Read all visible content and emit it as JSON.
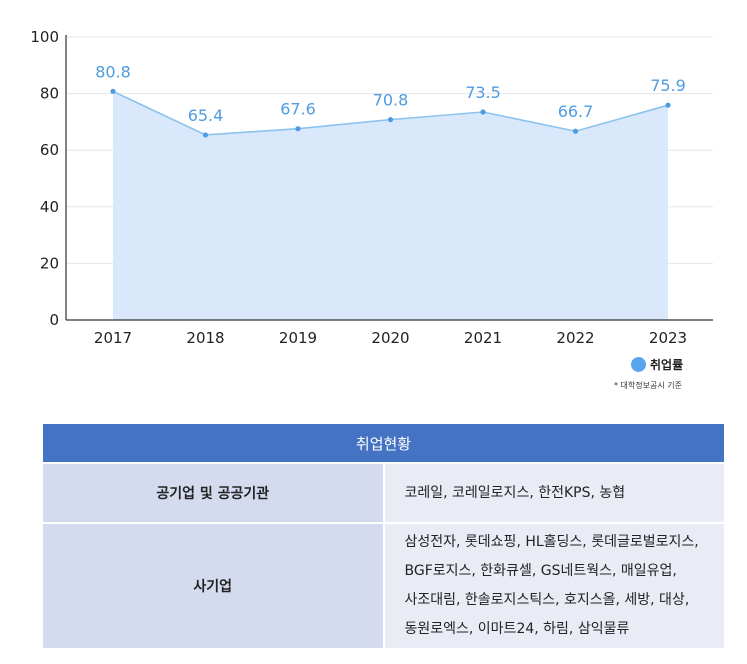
{
  "chart_data": {
    "type": "area",
    "x": [
      "2017",
      "2018",
      "2019",
      "2020",
      "2021",
      "2022",
      "2023"
    ],
    "series": [
      {
        "name": "취업률",
        "values": [
          80.8,
          65.4,
          67.6,
          70.8,
          73.5,
          66.7,
          75.9
        ]
      }
    ],
    "data_labels": [
      "80.8",
      "65.4",
      "67.6",
      "70.8",
      "73.5",
      "66.7",
      "75.9"
    ],
    "y_ticks": [
      "0",
      "20",
      "40",
      "60",
      "80",
      "100"
    ],
    "ylim": [
      0,
      100
    ],
    "grid": true,
    "legend": "bottom-right",
    "colors": {
      "line": "#8cc3ee",
      "fill": "#d9e9fb",
      "point": "#4f9be0",
      "label": "#4f9be0"
    }
  },
  "legend": {
    "label": "취업률",
    "note": "* 대학정보공시 기준"
  },
  "table": {
    "title": "취업현황",
    "rows": [
      {
        "category": "공기업 및 공공기관",
        "lines": [
          "코레일, 코레일로지스, 한전KPS, 농협"
        ]
      },
      {
        "category": "사기업",
        "lines": [
          "삼성전자, 롯데쇼핑, HL홀딩스, 롯데글로벌로지스,",
          "BGF로지스, 한화큐셀, GS네트웍스, 매일유업,",
          "사조대림, 한솔로지스틱스, 호지스올, 세방, 대상,",
          "동원로엑스, 이마트24, 하림, 삼익물류"
        ]
      }
    ],
    "colors": {
      "header": "#4573c4",
      "category_bg": "#d5dbee",
      "value_bg": "#e9ecf5"
    }
  }
}
